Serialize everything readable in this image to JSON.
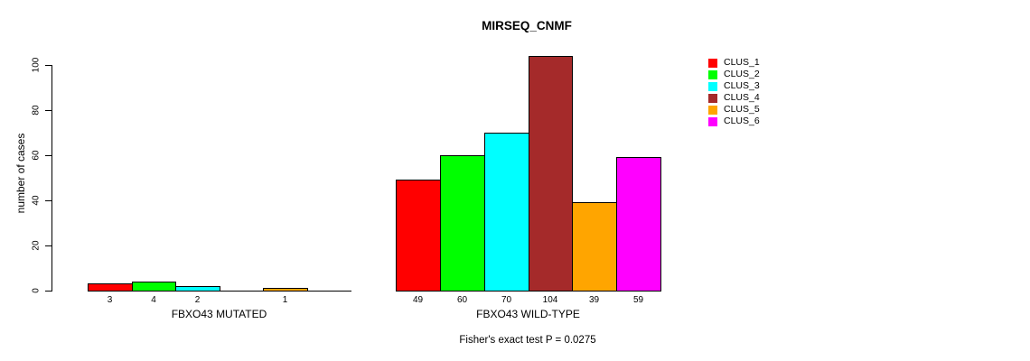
{
  "chart_data": {
    "type": "bar",
    "title": "MIRSEQ_CNMF",
    "ylabel": "number of cases",
    "ylim": [
      0,
      100
    ],
    "yticks": [
      0,
      20,
      40,
      60,
      80,
      100
    ],
    "grid": false,
    "legend_position": "right",
    "annotation": "Fisher's exact test P = 0.0275",
    "series": [
      {
        "name": "CLUS_1",
        "color": "#FF0000"
      },
      {
        "name": "CLUS_2",
        "color": "#00FF00"
      },
      {
        "name": "CLUS_3",
        "color": "#00FFFF"
      },
      {
        "name": "CLUS_4",
        "color": "#A52A2A"
      },
      {
        "name": "CLUS_5",
        "color": "#FFA500"
      },
      {
        "name": "CLUS_6",
        "color": "#FF00FF"
      }
    ],
    "groups": [
      {
        "label": "FBXO43 MUTATED",
        "values": [
          3,
          4,
          2,
          0,
          1,
          0
        ]
      },
      {
        "label": "FBXO43 WILD-TYPE",
        "values": [
          49,
          60,
          70,
          104,
          39,
          59
        ]
      }
    ]
  }
}
